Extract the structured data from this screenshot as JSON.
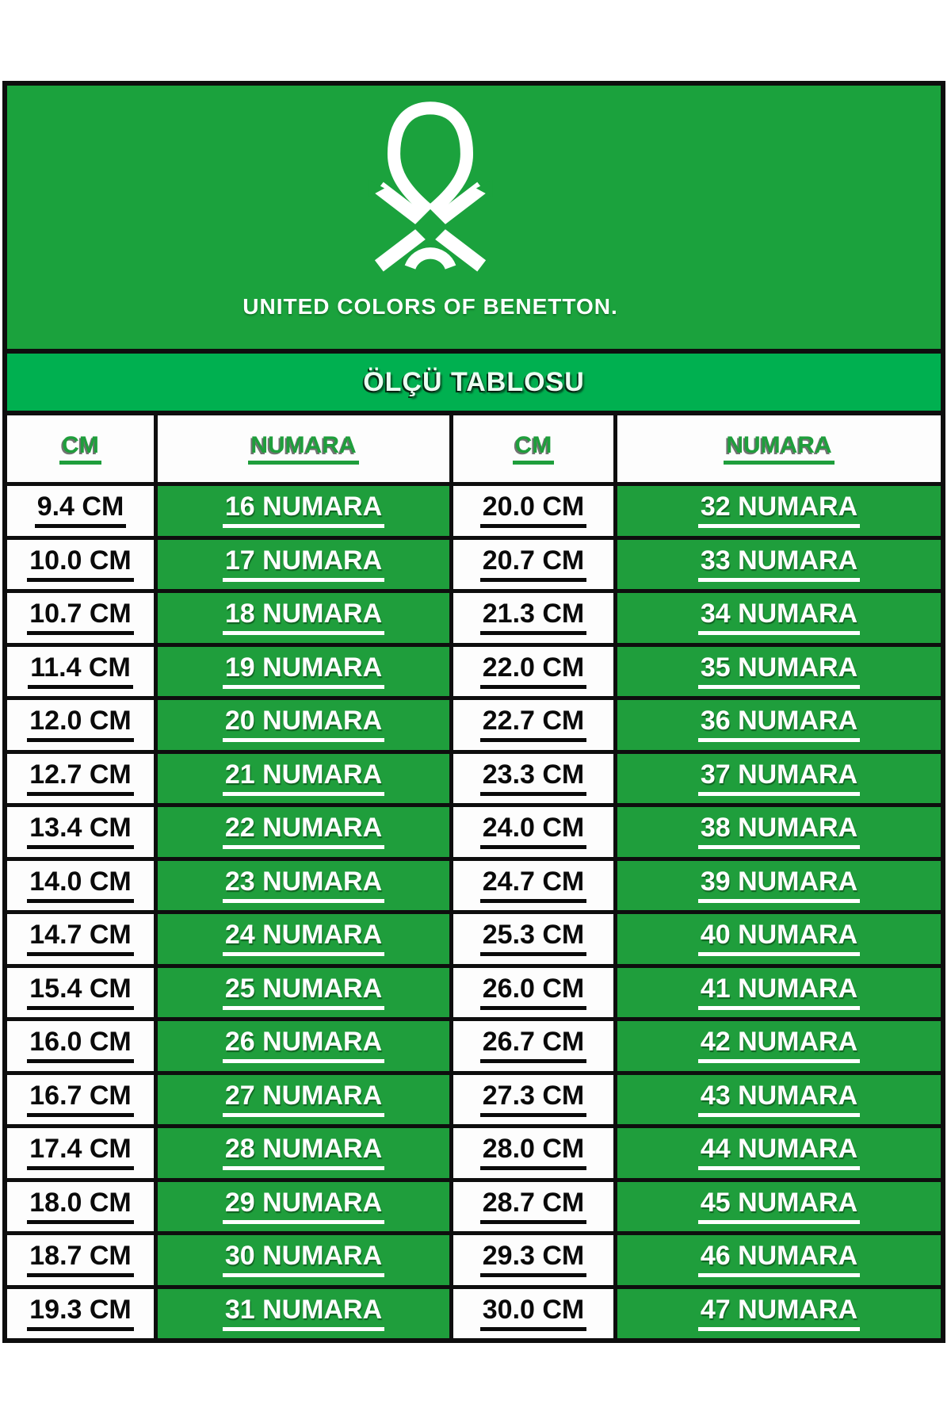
{
  "header": {
    "brand": "UNITED COLORS OF BENETTON.",
    "logo": "benetton-knot-icon"
  },
  "banner": {
    "title": "ÖLÇÜ TABLOSU"
  },
  "table": {
    "headers": [
      "CM",
      "NUMARA",
      "CM",
      "NUMARA"
    ],
    "rows": [
      {
        "cm_left": "9.4 CM",
        "numara_left": "16 NUMARA",
        "cm_right": "20.0 CM",
        "numara_right": "32 NUMARA"
      },
      {
        "cm_left": "10.0 CM",
        "numara_left": "17 NUMARA",
        "cm_right": "20.7 CM",
        "numara_right": "33 NUMARA"
      },
      {
        "cm_left": "10.7 CM",
        "numara_left": "18 NUMARA",
        "cm_right": "21.3 CM",
        "numara_right": "34 NUMARA"
      },
      {
        "cm_left": "11.4 CM",
        "numara_left": "19 NUMARA",
        "cm_right": "22.0 CM",
        "numara_right": "35 NUMARA"
      },
      {
        "cm_left": "12.0 CM",
        "numara_left": "20 NUMARA",
        "cm_right": "22.7 CM",
        "numara_right": "36 NUMARA"
      },
      {
        "cm_left": "12.7 CM",
        "numara_left": "21 NUMARA",
        "cm_right": "23.3 CM",
        "numara_right": "37 NUMARA"
      },
      {
        "cm_left": "13.4 CM",
        "numara_left": "22 NUMARA",
        "cm_right": "24.0 CM",
        "numara_right": "38 NUMARA"
      },
      {
        "cm_left": "14.0 CM",
        "numara_left": "23 NUMARA",
        "cm_right": "24.7 CM",
        "numara_right": "39 NUMARA"
      },
      {
        "cm_left": "14.7 CM",
        "numara_left": "24 NUMARA",
        "cm_right": "25.3 CM",
        "numara_right": "40 NUMARA"
      },
      {
        "cm_left": "15.4 CM",
        "numara_left": "25 NUMARA",
        "cm_right": "26.0 CM",
        "numara_right": "41 NUMARA"
      },
      {
        "cm_left": "16.0 CM",
        "numara_left": "26 NUMARA",
        "cm_right": "26.7 CM",
        "numara_right": "42 NUMARA"
      },
      {
        "cm_left": "16.7 CM",
        "numara_left": "27 NUMARA",
        "cm_right": "27.3 CM",
        "numara_right": "43 NUMARA"
      },
      {
        "cm_left": "17.4 CM",
        "numara_left": "28 NUMARA",
        "cm_right": "28.0 CM",
        "numara_right": "44 NUMARA"
      },
      {
        "cm_left": "18.0 CM",
        "numara_left": "29 NUMARA",
        "cm_right": "28.7 CM",
        "numara_right": "45 NUMARA"
      },
      {
        "cm_left": "18.7 CM",
        "numara_left": "30 NUMARA",
        "cm_right": "29.3 CM",
        "numara_right": "46 NUMARA"
      },
      {
        "cm_left": "19.3 CM",
        "numara_left": "31 NUMARA",
        "cm_right": "30.0 CM",
        "numara_right": "47 NUMARA"
      }
    ]
  },
  "colors": {
    "header_green": "#1ba23d",
    "banner_green": "#00b050",
    "cell_green": "#1f9e3c",
    "grid_black": "#0e0e0e"
  }
}
